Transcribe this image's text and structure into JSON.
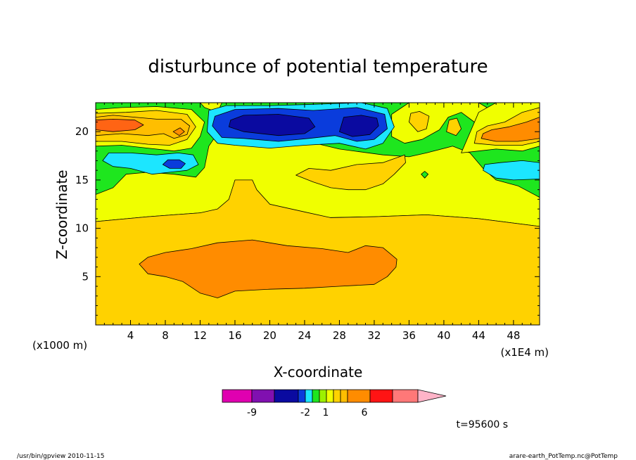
{
  "chart_data": {
    "type": "contour",
    "title": "disturbunce of potential temperature",
    "xlabel": "X-coordinate",
    "ylabel": "Z-coordinate",
    "x_unit_left": "(x1000 m)",
    "x_unit_right": "(x1E4 m)",
    "x_ticks": [
      "4",
      "8",
      "12",
      "16",
      "20",
      "24",
      "28",
      "32",
      "36",
      "40",
      "44",
      "48"
    ],
    "y_ticks": [
      "5",
      "10",
      "15",
      "20"
    ],
    "xlim": [
      0,
      51
    ],
    "ylim": [
      0,
      23
    ],
    "time_label": "t=95600 s",
    "colorbar": {
      "labels": [
        "-9",
        "-2",
        "1",
        "6"
      ],
      "colors": [
        "#e000b0",
        "#8010b0",
        "#0a0aa0",
        "#0a3cdc",
        "#1ce6ff",
        "#1ee61e",
        "#9cf000",
        "#f0ff00",
        "#ffd200",
        "#ffbe00",
        "#ff8c00",
        "#ff1414",
        "#ff7878",
        "#ffb4c8"
      ]
    },
    "level_colors": {
      "l_m9": "#0a0aa0",
      "l_m6": "#0a3cdc",
      "l_m3": "#1ce6ff",
      "l_m1": "#1ee61e",
      "l_0": "#f0ff00",
      "l_1": "#ffd200",
      "l_2": "#ffbe00",
      "l_3": "#ff8c00",
      "l_5": "#ff6414"
    },
    "regions": [
      {
        "name": "upper-yellow-zone",
        "level": "l_0",
        "points": [
          [
            0,
            10.7
          ],
          [
            6,
            11.2
          ],
          [
            12,
            11.6
          ],
          [
            18,
            11.6
          ],
          [
            26,
            11.1
          ],
          [
            32,
            11.2
          ],
          [
            38,
            11.4
          ],
          [
            44,
            11.0
          ],
          [
            51,
            10.2
          ],
          [
            51,
            23
          ],
          [
            0,
            23
          ]
        ]
      },
      {
        "name": "green-zone-left",
        "level": "l_m1",
        "points": [
          [
            0,
            13.5
          ],
          [
            2,
            14.2
          ],
          [
            3.5,
            15.6
          ],
          [
            6,
            15.8
          ],
          [
            9,
            15.6
          ],
          [
            11.5,
            15.3
          ],
          [
            12.5,
            16.3
          ],
          [
            13,
            18.5
          ],
          [
            14.5,
            20.5
          ],
          [
            17,
            20.8
          ],
          [
            22,
            19.5
          ],
          [
            28,
            18.2
          ],
          [
            33,
            17.6
          ],
          [
            36,
            17.4
          ],
          [
            38,
            17.8
          ],
          [
            41,
            18.5
          ],
          [
            43,
            17.8
          ],
          [
            44.5,
            16.2
          ],
          [
            46,
            15.0
          ],
          [
            48.5,
            14.4
          ],
          [
            51,
            13.2
          ],
          [
            51,
            23
          ],
          [
            0,
            23
          ]
        ]
      },
      {
        "name": "green-patch-mid-right",
        "level": "l_m1",
        "points": [
          [
            37.4,
            15.6
          ],
          [
            37.8,
            15.9
          ],
          [
            38.2,
            15.6
          ],
          [
            37.8,
            15.2
          ]
        ]
      },
      {
        "name": "yellow-band-top-left",
        "level": "l_0",
        "points": [
          [
            0,
            18.5
          ],
          [
            3,
            18.6
          ],
          [
            6,
            18.3
          ],
          [
            9,
            18.0
          ],
          [
            11,
            18.3
          ],
          [
            12,
            19.5
          ],
          [
            12.5,
            21.0
          ],
          [
            11,
            22.3
          ],
          [
            7,
            22.6
          ],
          [
            3,
            22.5
          ],
          [
            0,
            22.3
          ]
        ]
      },
      {
        "name": "yellow-top-mid",
        "level": "l_0",
        "points": [
          [
            12.5,
            22.5
          ],
          [
            14,
            22.0
          ],
          [
            14.5,
            23
          ],
          [
            12,
            23
          ]
        ]
      },
      {
        "name": "yellow-patch-right-center",
        "level": "l_0",
        "points": [
          [
            34,
            19.5
          ],
          [
            35.5,
            18.8
          ],
          [
            37.5,
            19.2
          ],
          [
            39.5,
            20.2
          ],
          [
            40.5,
            21.5
          ],
          [
            42,
            22.0
          ],
          [
            43.5,
            21.0
          ],
          [
            45,
            20.8
          ],
          [
            45.5,
            22.2
          ],
          [
            44,
            23
          ],
          [
            36,
            23
          ],
          [
            34,
            21.8
          ]
        ]
      },
      {
        "name": "yellow-top-right",
        "level": "l_0",
        "points": [
          [
            42,
            17.8
          ],
          [
            44,
            18.0
          ],
          [
            46,
            18.2
          ],
          [
            49,
            18.0
          ],
          [
            51,
            18.5
          ],
          [
            51,
            23
          ],
          [
            46,
            23
          ],
          [
            44,
            22.0
          ]
        ]
      },
      {
        "name": "cyan-left",
        "level": "l_m3",
        "points": [
          [
            0.8,
            17.0
          ],
          [
            2,
            16.4
          ],
          [
            4,
            16.2
          ],
          [
            6.5,
            15.6
          ],
          [
            8.5,
            15.8
          ],
          [
            10.5,
            16.0
          ],
          [
            11.8,
            16.6
          ],
          [
            11.2,
            17.6
          ],
          [
            9.5,
            17.8
          ],
          [
            7,
            17.6
          ],
          [
            4,
            17.8
          ],
          [
            1.5,
            17.8
          ]
        ]
      },
      {
        "name": "blue-small-left",
        "level": "l_m6",
        "points": [
          [
            7.7,
            16.6
          ],
          [
            8.5,
            16.2
          ],
          [
            9.8,
            16.2
          ],
          [
            10.3,
            16.7
          ],
          [
            9.6,
            17.1
          ],
          [
            8.3,
            17.1
          ]
        ]
      },
      {
        "name": "cyan-right",
        "level": "l_m3",
        "points": [
          [
            44.5,
            16.0
          ],
          [
            46,
            15.2
          ],
          [
            48,
            15.0
          ],
          [
            51,
            15.1
          ],
          [
            51,
            16.8
          ],
          [
            49,
            17.0
          ],
          [
            46.5,
            16.8
          ],
          [
            44.7,
            16.6
          ]
        ]
      },
      {
        "name": "cyan-top-center",
        "level": "l_m3",
        "points": [
          [
            12.8,
            20.0
          ],
          [
            14,
            18.8
          ],
          [
            16,
            18.6
          ],
          [
            20,
            18.3
          ],
          [
            24,
            18.6
          ],
          [
            28,
            18.8
          ],
          [
            31,
            18.2
          ],
          [
            33,
            18.8
          ],
          [
            34.3,
            20.5
          ],
          [
            33.5,
            22.4
          ],
          [
            30.5,
            23
          ],
          [
            24,
            22.8
          ],
          [
            20,
            22.7
          ],
          [
            15,
            22.7
          ],
          [
            13,
            22.2
          ]
        ]
      },
      {
        "name": "blue-top-center",
        "level": "l_m6",
        "points": [
          [
            13.4,
            20.6
          ],
          [
            14.5,
            19.4
          ],
          [
            17,
            19.3
          ],
          [
            21,
            19.0
          ],
          [
            24.5,
            19.3
          ],
          [
            27.5,
            19.6
          ],
          [
            30,
            19.0
          ],
          [
            32,
            19.2
          ],
          [
            33.5,
            20.3
          ],
          [
            33.2,
            21.8
          ],
          [
            30,
            22.5
          ],
          [
            25,
            22.2
          ],
          [
            21,
            22.4
          ],
          [
            16,
            22.3
          ],
          [
            13.7,
            21.6
          ]
        ]
      },
      {
        "name": "navy-core-left",
        "level": "l_m9",
        "points": [
          [
            15.3,
            20.5
          ],
          [
            17,
            20.0
          ],
          [
            21,
            19.6
          ],
          [
            24,
            19.8
          ],
          [
            25.2,
            20.5
          ],
          [
            24.5,
            21.4
          ],
          [
            21,
            21.8
          ],
          [
            17,
            21.7
          ],
          [
            15.5,
            21.2
          ]
        ]
      },
      {
        "name": "navy-core-right",
        "level": "l_m9",
        "points": [
          [
            28,
            20.0
          ],
          [
            29.5,
            19.5
          ],
          [
            31.5,
            19.7
          ],
          [
            32.5,
            20.6
          ],
          [
            32.3,
            21.4
          ],
          [
            30.5,
            21.7
          ],
          [
            28.5,
            21.5
          ]
        ]
      },
      {
        "name": "light-orange-left-top",
        "level": "l_1",
        "points": [
          [
            0,
            19.0
          ],
          [
            3,
            19.0
          ],
          [
            6,
            18.7
          ],
          [
            8.5,
            18.6
          ],
          [
            10.5,
            19.2
          ],
          [
            11.5,
            20.5
          ],
          [
            10.5,
            21.8
          ],
          [
            7,
            22.2
          ],
          [
            3.5,
            22.0
          ],
          [
            0,
            21.9
          ]
        ]
      },
      {
        "name": "orange-left-top",
        "level": "l_2",
        "points": [
          [
            0,
            19.6
          ],
          [
            3,
            19.8
          ],
          [
            6,
            19.6
          ],
          [
            7.8,
            19.8
          ],
          [
            9,
            19.3
          ],
          [
            10.5,
            19.7
          ],
          [
            10.8,
            20.6
          ],
          [
            9.8,
            21.3
          ],
          [
            7,
            21.3
          ],
          [
            4.5,
            21.5
          ],
          [
            2,
            21.7
          ],
          [
            0,
            21.5
          ]
        ]
      },
      {
        "name": "dark-orange-left-core",
        "level": "l_5",
        "points": [
          [
            0,
            20.2
          ],
          [
            2,
            20.0
          ],
          [
            4.5,
            20.2
          ],
          [
            5.5,
            20.7
          ],
          [
            4.5,
            21.2
          ],
          [
            2,
            21.3
          ],
          [
            0,
            21.2
          ]
        ]
      },
      {
        "name": "dark-orange-small-left",
        "level": "l_3",
        "points": [
          [
            8.9,
            20.0
          ],
          [
            9.6,
            19.6
          ],
          [
            10.2,
            20.0
          ],
          [
            9.7,
            20.4
          ]
        ]
      },
      {
        "name": "light-orange-right-top",
        "level": "l_1",
        "points": [
          [
            43.5,
            18.8
          ],
          [
            46,
            18.6
          ],
          [
            49,
            18.6
          ],
          [
            51,
            19.0
          ],
          [
            51,
            22.5
          ],
          [
            49,
            22.0
          ],
          [
            47,
            21.0
          ],
          [
            45,
            20.6
          ],
          [
            43.8,
            20.0
          ]
        ]
      },
      {
        "name": "orange-right-top",
        "level": "l_3",
        "points": [
          [
            44.3,
            19.3
          ],
          [
            46,
            19.0
          ],
          [
            48.5,
            19.0
          ],
          [
            51,
            19.3
          ],
          [
            51,
            21.5
          ],
          [
            49.5,
            21.0
          ],
          [
            47.5,
            20.5
          ],
          [
            45.5,
            20.2
          ],
          [
            44.5,
            19.8
          ]
        ]
      },
      {
        "name": "light-orange-small-right-a",
        "level": "l_1",
        "points": [
          [
            36,
            21.0
          ],
          [
            37,
            20.0
          ],
          [
            38,
            20.3
          ],
          [
            38.3,
            21.6
          ],
          [
            37.2,
            22.1
          ],
          [
            36.2,
            21.9
          ]
        ]
      },
      {
        "name": "light-orange-small-right-b",
        "level": "l_1",
        "points": [
          [
            40.3,
            20.0
          ],
          [
            41.4,
            19.6
          ],
          [
            42,
            20.3
          ],
          [
            41.5,
            21.4
          ],
          [
            40.6,
            21.2
          ]
        ]
      },
      {
        "name": "light-orange-mid",
        "level": "l_1",
        "points": [
          [
            23,
            15.5
          ],
          [
            24.5,
            16.2
          ],
          [
            27,
            16.0
          ],
          [
            30,
            16.6
          ],
          [
            33,
            16.8
          ],
          [
            35.5,
            17.6
          ],
          [
            35.6,
            16.8
          ],
          [
            34.3,
            15.6
          ],
          [
            33,
            14.6
          ],
          [
            31,
            14.0
          ],
          [
            29,
            14.0
          ],
          [
            27,
            14.2
          ],
          [
            25,
            14.8
          ]
        ]
      },
      {
        "name": "lower-light-orange",
        "level": "l_1",
        "points": [
          [
            0,
            0
          ],
          [
            51,
            0
          ],
          [
            51,
            10.2
          ],
          [
            44,
            11.0
          ],
          [
            38,
            11.4
          ],
          [
            32,
            11.2
          ],
          [
            27,
            11.1
          ],
          [
            24,
            11.7
          ],
          [
            20,
            12.5
          ],
          [
            18.5,
            14.0
          ],
          [
            18,
            15.0
          ],
          [
            16,
            15.0
          ],
          [
            15.3,
            13.0
          ],
          [
            14,
            12.0
          ],
          [
            12,
            11.6
          ],
          [
            6,
            11.2
          ],
          [
            0,
            10.7
          ]
        ]
      },
      {
        "name": "lower-orange-core",
        "level": "l_3",
        "points": [
          [
            5,
            6.3
          ],
          [
            6,
            5.3
          ],
          [
            8,
            5.0
          ],
          [
            10,
            4.5
          ],
          [
            12,
            3.3
          ],
          [
            14,
            2.8
          ],
          [
            16,
            3.5
          ],
          [
            18,
            3.6
          ],
          [
            20,
            3.7
          ],
          [
            24,
            3.8
          ],
          [
            28,
            4.0
          ],
          [
            32,
            4.2
          ],
          [
            33.5,
            5.0
          ],
          [
            34.5,
            6.0
          ],
          [
            34.6,
            6.8
          ],
          [
            33,
            8.0
          ],
          [
            31,
            8.2
          ],
          [
            29,
            7.5
          ],
          [
            26,
            7.9
          ],
          [
            22,
            8.2
          ],
          [
            18,
            8.8
          ],
          [
            14,
            8.5
          ],
          [
            11,
            7.9
          ],
          [
            8,
            7.5
          ],
          [
            6,
            7.0
          ]
        ]
      }
    ]
  },
  "footer": {
    "left": "/usr/bin/gpview   2010-11-15",
    "right": "arare-earth_PotTemp.nc@PotTemp"
  }
}
